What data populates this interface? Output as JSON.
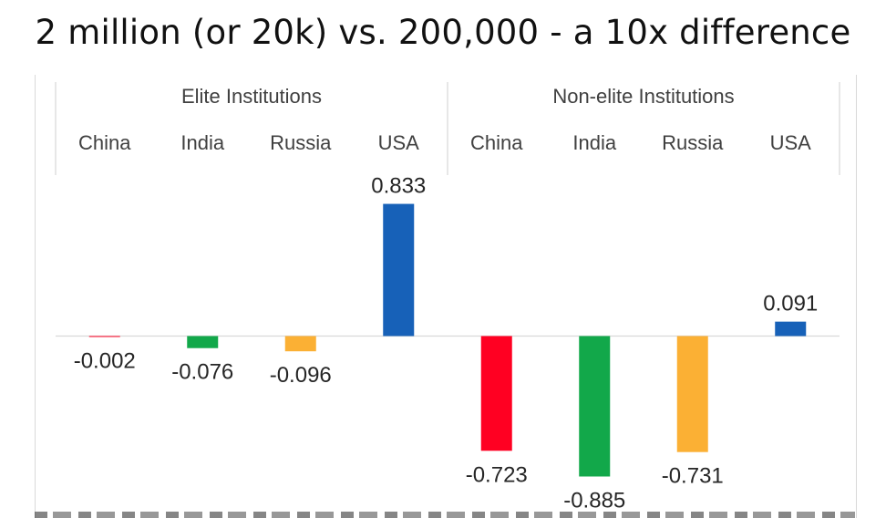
{
  "title": "2 million (or 20k) vs. 200,000 - a 10x difference",
  "chart_data": {
    "type": "bar",
    "groups": [
      "Elite Institutions",
      "Non-elite Institutions"
    ],
    "categories": [
      "China",
      "India",
      "Russia",
      "USA",
      "China",
      "India",
      "Russia",
      "USA"
    ],
    "values": [
      -0.002,
      -0.076,
      -0.096,
      0.833,
      -0.723,
      -0.885,
      -0.731,
      0.091
    ],
    "value_labels": [
      "-0.002",
      "-0.076",
      "-0.096",
      "0.833",
      "-0.723",
      "-0.885",
      "-0.731",
      "0.091"
    ],
    "colors": [
      "#ff0022",
      "#12a84a",
      "#fbb034",
      "#1761b8",
      "#ff0022",
      "#12a84a",
      "#fbb034",
      "#1761b8"
    ],
    "group_of_category": [
      0,
      0,
      0,
      0,
      1,
      1,
      1,
      1
    ],
    "ylim": [
      -0.95,
      0.85
    ],
    "gridlines": false
  }
}
